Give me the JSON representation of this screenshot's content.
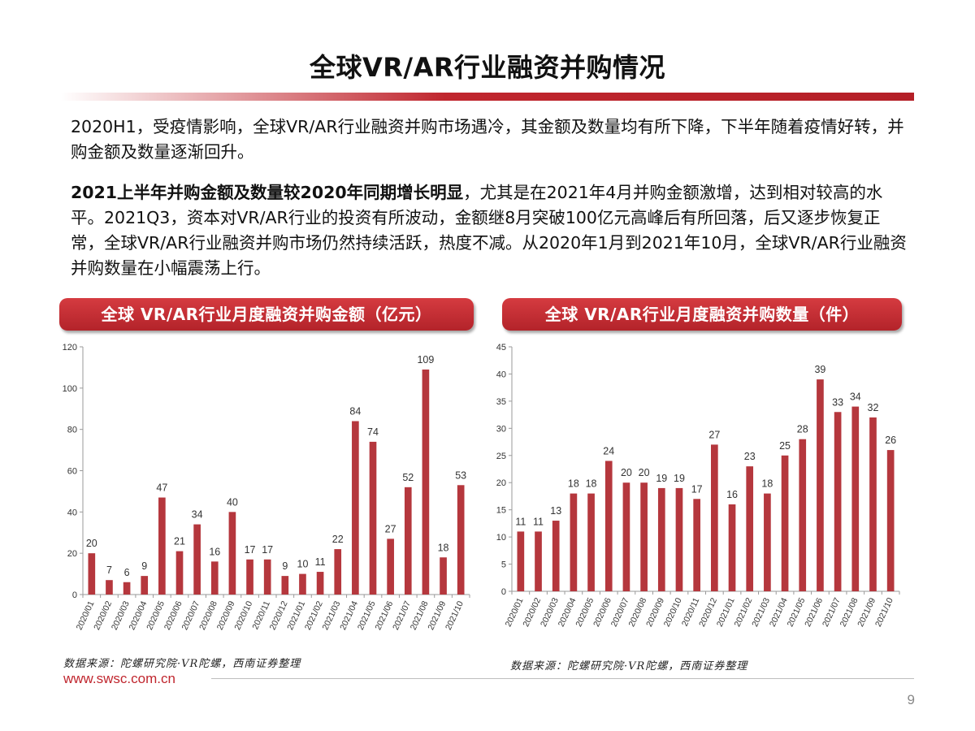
{
  "page": {
    "title": "全球VR/AR行业融资并购情况",
    "paragraph1": "2020H1，受疫情影响，全球VR/AR行业融资并购市场遇冷，其金额及数量均有所下降，下半年随着疫情好转，并购金额及数量逐渐回升。",
    "paragraph2_bold": "2021上半年并购金额及数量较2020年同期增长明显",
    "paragraph2_rest": "，尤其是在2021年4月并购金额激增，达到相对较高的水平。2021Q3，资本对VR/AR行业的投资有所波动，金额继8月突破100亿元高峰后有所回落，后又逐步恢复正常，全球VR/AR行业融资并购市场仍然持续活跃，热度不减。从2020年1月到2021年10月，全球VR/AR行业融资并购数量在小幅震荡上行。",
    "source_left": "数据来源：陀螺研究院·VR陀螺，西南证券整理",
    "source_right": "数据来源：陀螺研究院·VR陀螺，西南证券整理",
    "website": "www.swsc.com.cn",
    "page_number": "9"
  },
  "colors": {
    "accent": "#c0262e",
    "bar": "#b5373d",
    "header_bg": "#c0262e"
  },
  "chart_data": [
    {
      "type": "bar",
      "title": "全球 VR/AR行业月度融资并购金额（亿元）",
      "categories": [
        "2020/01",
        "2020/02",
        "2020/03",
        "2020/04",
        "2020/05",
        "2020/06",
        "2020/07",
        "2020/08",
        "2020/09",
        "2020/10",
        "2020/11",
        "2020/12",
        "2021/01",
        "2021/02",
        "2021/03",
        "2021/04",
        "2021/05",
        "2021/06",
        "2021/07",
        "2021/08",
        "2021/09",
        "2021/10"
      ],
      "values": [
        20,
        7,
        6,
        9,
        47,
        21,
        34,
        16,
        40,
        17,
        17,
        9,
        10,
        11,
        22,
        84,
        74,
        27,
        52,
        109,
        18,
        53
      ],
      "ylim": [
        0,
        120
      ],
      "yticks": [
        0,
        20,
        40,
        60,
        80,
        100,
        120
      ],
      "data_labels": true,
      "grid": false
    },
    {
      "type": "bar",
      "title": "全球 VR/AR行业月度融资并购数量（件）",
      "categories": [
        "2020/01",
        "2020/02",
        "2020/03",
        "2020/04",
        "2020/05",
        "2020/06",
        "2020/07",
        "2020/08",
        "2020/09",
        "2020/10",
        "2020/11",
        "2020/12",
        "2021/01",
        "2021/02",
        "2021/03",
        "2021/04",
        "2021/05",
        "2021/06",
        "2021/07",
        "2021/08",
        "2021/09",
        "2021/10"
      ],
      "values": [
        11,
        11,
        13,
        18,
        18,
        24,
        20,
        20,
        19,
        19,
        17,
        27,
        16,
        23,
        18,
        25,
        28,
        39,
        33,
        34,
        32,
        26
      ],
      "ylim": [
        0,
        45
      ],
      "yticks": [
        0,
        5,
        10,
        15,
        20,
        25,
        30,
        35,
        40,
        45
      ],
      "data_labels": true,
      "grid": false
    }
  ]
}
